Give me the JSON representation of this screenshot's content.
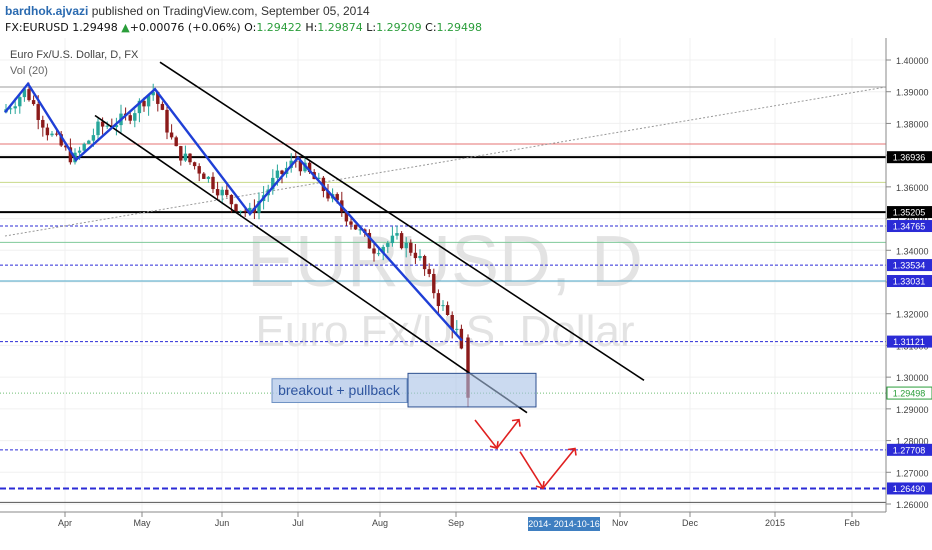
{
  "header": {
    "author": "bardhok.ajvazi",
    "published": "published on TradingView.com, September 05, 2014",
    "symbol": "FX:EURUSD",
    "last": "1.29498",
    "change_arrow": "▲",
    "change": "+0.00076 (+0.06%)",
    "o_label": "O:",
    "o_value": "1.29422",
    "h_label": "H:",
    "h_value": "1.29874",
    "l_label": "L:",
    "l_value": "1.29209",
    "c_label": "C:",
    "c_value": "1.29498"
  },
  "chart_data": {
    "type": "candlestick",
    "title": "Euro Fx/U.S. Dollar, D, FX",
    "indicator": "Vol (20)",
    "watermark_symbol": "EURUSD, D",
    "watermark_name": "Euro Fx/U.S. Dollar",
    "x_labels": [
      "Apr",
      "May",
      "Jun",
      "Jul",
      "Aug",
      "Sep",
      "Nov",
      "Dec",
      "2015",
      "Feb"
    ],
    "x_highlight": "2014- 2014-10-16",
    "y_ticks": [
      "1.40000",
      "1.39000",
      "1.38000",
      "1.37000",
      "1.36000",
      "1.35000",
      "1.34000",
      "1.33000",
      "1.32000",
      "1.31000",
      "1.30000",
      "1.29000",
      "1.28000",
      "1.27000",
      "1.26000"
    ],
    "ylim": [
      1.2575,
      1.4045
    ],
    "price_boxes": [
      {
        "label": "1.36936",
        "value": 1.36936,
        "style": "black"
      },
      {
        "label": "1.35205",
        "value": 1.35205,
        "style": "black"
      },
      {
        "label": "1.34765",
        "value": 1.34765,
        "style": "blue"
      },
      {
        "label": "1.33534",
        "value": 1.33534,
        "style": "blue"
      },
      {
        "label": "1.33031",
        "value": 1.33031,
        "style": "blue"
      },
      {
        "label": "1.31121",
        "value": 1.31121,
        "style": "blue"
      },
      {
        "label": "1.29498",
        "value": 1.29498,
        "style": "green"
      },
      {
        "label": "1.27708",
        "value": 1.27708,
        "style": "blue"
      },
      {
        "label": "1.26490",
        "value": 1.2649,
        "style": "blue"
      }
    ],
    "annotation": "breakout + pullback",
    "colors": {
      "up": "#26a69a",
      "down": "#8b1a1a",
      "zigzag": "#1f3fd6",
      "channel": "#000000",
      "accent": "#2a6ab0"
    }
  }
}
